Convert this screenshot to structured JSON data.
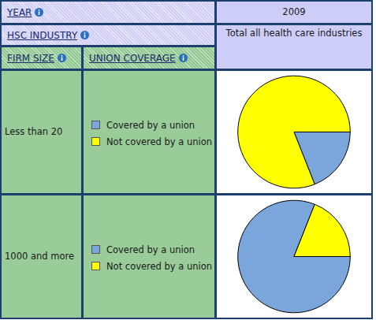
{
  "table": {
    "header": {
      "year_label": "YEAR",
      "year_value": "2009",
      "industry_label": "HSC INDUSTRY",
      "industry_value": "Total all health care industries",
      "firm_size_label": "FIRM SIZE",
      "union_coverage_label": "UNION COVERAGE"
    },
    "rows": [
      "Less than 20",
      "1000 and more"
    ]
  },
  "chart_data": [
    {
      "type": "pie",
      "row": "Less than 20",
      "categories": [
        "Covered by a union",
        "Not covered by a union"
      ],
      "values": [
        19,
        81
      ],
      "colors": [
        "#7ba6dc",
        "#ffff00"
      ]
    },
    {
      "type": "pie",
      "row": "1000 and more",
      "categories": [
        "Covered by a union",
        "Not covered by a union"
      ],
      "values": [
        81,
        19
      ],
      "colors": [
        "#7ba6dc",
        "#ffff00"
      ]
    }
  ]
}
